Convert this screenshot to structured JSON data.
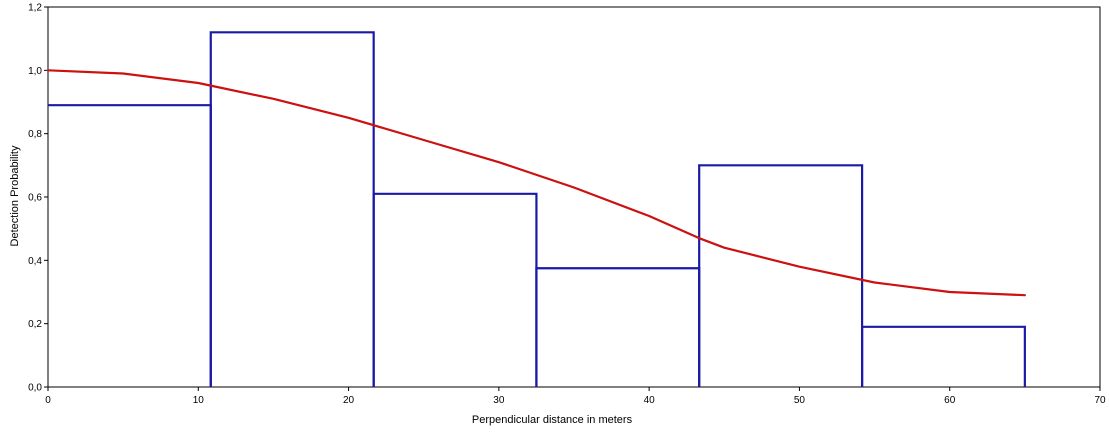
{
  "chart_data": {
    "type": "bar",
    "title": "",
    "xlabel": "Perpendicular distance in meters",
    "ylabel": "Detection Probability",
    "xlim": [
      0,
      70
    ],
    "ylim": [
      0,
      1.2
    ],
    "xticks": [
      0,
      10,
      20,
      30,
      40,
      50,
      60,
      70
    ],
    "xtick_labels": [
      "0",
      "10",
      "20",
      "30",
      "40",
      "50",
      "60",
      "70"
    ],
    "yticks": [
      0,
      0.2,
      0.4,
      0.6,
      0.8,
      1.0,
      1.2
    ],
    "ytick_labels": [
      "0,0",
      "0,2",
      "0,4",
      "0,6",
      "0,8",
      "1,0",
      "1,2"
    ],
    "grid": false,
    "legend": "none",
    "histogram": {
      "name": "",
      "color": "#1a1aa6",
      "bins": [
        {
          "x0": 0,
          "x1": 10.83,
          "value": 0.89
        },
        {
          "x0": 10.83,
          "x1": 21.67,
          "value": 1.12
        },
        {
          "x0": 21.67,
          "x1": 32.5,
          "value": 0.61
        },
        {
          "x0": 32.5,
          "x1": 43.33,
          "value": 0.375
        },
        {
          "x0": 43.33,
          "x1": 54.17,
          "value": 0.7
        },
        {
          "x0": 54.17,
          "x1": 65,
          "value": 0.19
        }
      ]
    },
    "curve": {
      "name": "",
      "color": "#cc1111",
      "x": [
        0,
        5,
        10,
        15,
        20,
        25,
        30,
        35,
        40,
        43.33,
        45,
        50,
        55,
        60,
        65
      ],
      "y": [
        1.0,
        0.99,
        0.96,
        0.91,
        0.85,
        0.78,
        0.71,
        0.63,
        0.54,
        0.47,
        0.44,
        0.38,
        0.33,
        0.3,
        0.29
      ]
    }
  }
}
